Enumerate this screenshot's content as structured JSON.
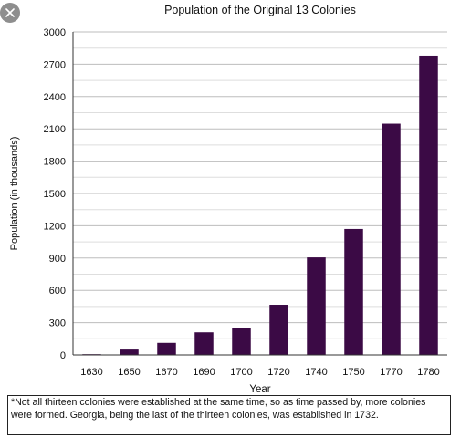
{
  "window": {
    "close_icon": "close-icon"
  },
  "chart_data": {
    "type": "bar",
    "title": "Population of the Original 13 Colonies",
    "xlabel": "Year",
    "ylabel": "Population (in thousands)",
    "categories": [
      "1630",
      "1650",
      "1670",
      "1690",
      "1700",
      "1720",
      "1740",
      "1750",
      "1770",
      "1780"
    ],
    "values": [
      5,
      50,
      112,
      210,
      250,
      466,
      906,
      1170,
      2148,
      2780
    ],
    "ylim": [
      0,
      3000
    ],
    "yticks": [
      0,
      300,
      600,
      900,
      1200,
      1500,
      1800,
      2100,
      2400,
      2700,
      3000
    ],
    "grid": true,
    "legend": "none",
    "bar_color": "#3b0a45"
  },
  "footnote": "*Not all thirteen colonies were established at the same time, so as time passed by, more colonies were formed. Georgia, being the last of the thirteen colonies, was established in 1732."
}
